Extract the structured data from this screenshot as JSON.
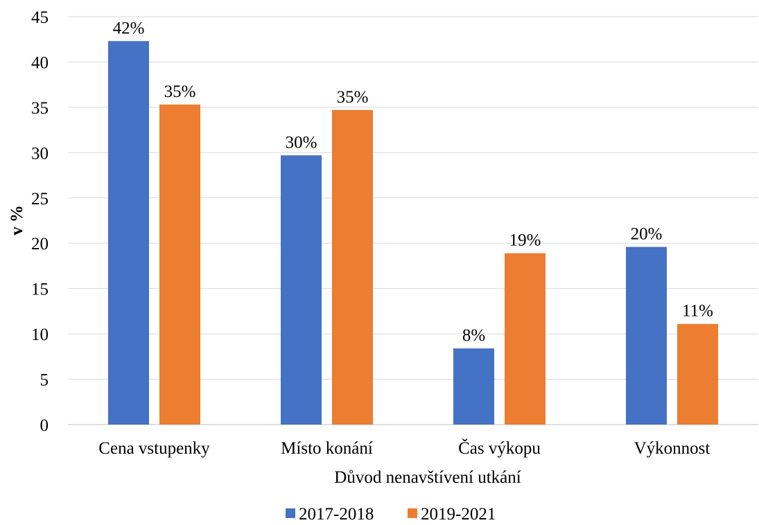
{
  "chart_data": {
    "type": "bar",
    "title": "",
    "xlabel": "Důvod nenavštívení utkání",
    "ylabel": "v %",
    "ylim": [
      0,
      45
    ],
    "yticks": [
      0,
      5,
      10,
      15,
      20,
      25,
      30,
      35,
      40,
      45
    ],
    "grid": true,
    "legend_position": "bottom",
    "categories": [
      "Cena vstupenky",
      "Místo konání",
      "Čas výkopu",
      "Výkonnost"
    ],
    "series": [
      {
        "name": "2017-2018",
        "color": "#4472C4",
        "values": [
          42.3,
          29.7,
          8.4,
          19.6
        ],
        "labels": [
          "42%",
          "30%",
          "8%",
          "20%"
        ]
      },
      {
        "name": "2019-2021",
        "color": "#ED7D31",
        "values": [
          35.3,
          34.7,
          18.9,
          11.1
        ],
        "labels": [
          "35%",
          "35%",
          "19%",
          "11%"
        ]
      }
    ]
  }
}
